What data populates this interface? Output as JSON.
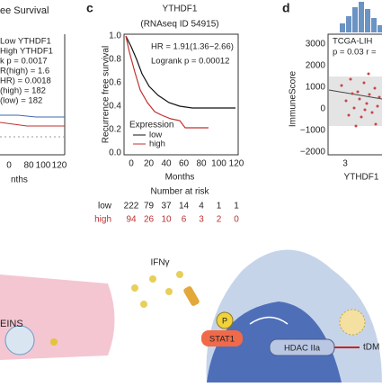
{
  "panel_b": {
    "title": "ee Survival",
    "legend": [
      "Low YTHDF1",
      "High YTHDF1",
      "k p = 0.0017",
      "R(high) = 1.6",
      "HR) = 0.0018",
      "(high) = 182",
      "(low) = 182"
    ],
    "xticks": [
      "0",
      "80",
      "100",
      "120"
    ],
    "xlabel": "nths"
  },
  "panel_c": {
    "label": "c",
    "title": "YTHDF1",
    "subtitle": "(RNAseq ID 54915)",
    "yticks": [
      "1.0",
      "0.8",
      "0.6",
      "0.4",
      "0.2",
      "0.0"
    ],
    "ylabel": "Recurrence free survival",
    "stats": [
      "HR = 1.91(1.36−2.66)",
      "Logrank p = 0.00012"
    ],
    "legend_title": "Expression",
    "legend": [
      "low",
      "high"
    ],
    "xticks": [
      "0",
      "20",
      "40",
      "60",
      "80",
      "100",
      "120"
    ],
    "xlabel": "Months",
    "risk_title": "Number at risk",
    "risk_rows": [
      [
        "low",
        "222",
        "79",
        "37",
        "14",
        "4",
        "1",
        "1"
      ],
      [
        "high",
        "94",
        "26",
        "10",
        "6",
        "3",
        "2",
        "0"
      ]
    ]
  },
  "panel_d": {
    "label": "d",
    "yticks": [
      "3000",
      "2000",
      "1000",
      "0",
      "−1000",
      "−2000"
    ],
    "ylabel": "ImmuneScore",
    "annotations": [
      "TCGA-LIH",
      "p = 0.03 r ="
    ],
    "xticks": [
      "3"
    ],
    "xlabel": "YTHDF1"
  },
  "illustration": {
    "labels": [
      "IFNγ",
      "EINS",
      "P",
      "STAT1",
      "HDAC IIa",
      "tDM"
    ]
  }
}
